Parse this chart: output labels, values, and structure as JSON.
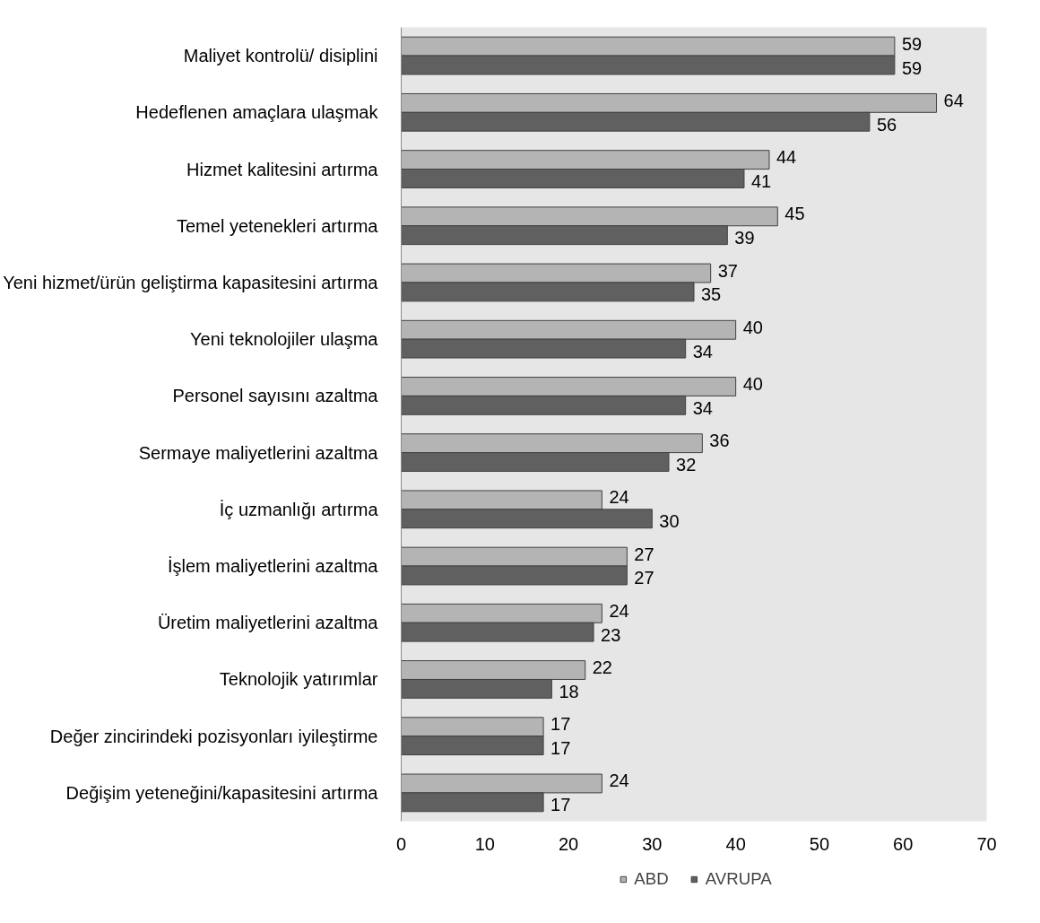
{
  "chart_data": {
    "type": "bar",
    "orientation": "horizontal",
    "categories": [
      "Maliyet kontrolü/ disiplini",
      "Hedeflenen amaçlara ulaşmak",
      "Hizmet kalitesini artırma",
      "Temel yetenekleri artırma",
      "Yeni hizmet/ürün geliştirma kapasitesini artırma",
      "Yeni teknolojiler ulaşma",
      "Personel sayısını azaltma",
      "Sermaye maliyetlerini azaltma",
      "İç uzmanlığı artırma",
      "İşlem maliyetlerini azaltma",
      "Üretim maliyetlerini azaltma",
      "Teknolojik yatırımlar",
      "Değer zincirindeki pozisyonları iyileştirme",
      "Değişim yeteneğini/kapasitesini artırma"
    ],
    "series": [
      {
        "name": "ABD",
        "color": "#b4b4b4",
        "values": [
          59,
          64,
          44,
          45,
          37,
          40,
          40,
          36,
          24,
          27,
          24,
          22,
          17,
          24
        ]
      },
      {
        "name": "AVRUPA",
        "color": "#606060",
        "values": [
          59,
          56,
          41,
          39,
          35,
          34,
          34,
          32,
          30,
          27,
          23,
          18,
          17,
          17
        ]
      }
    ],
    "xlim": [
      0,
      70
    ],
    "xticks": [
      0,
      10,
      20,
      30,
      40,
      50,
      60,
      70
    ],
    "data_labels": true,
    "grid": false,
    "legend": "bottom"
  }
}
